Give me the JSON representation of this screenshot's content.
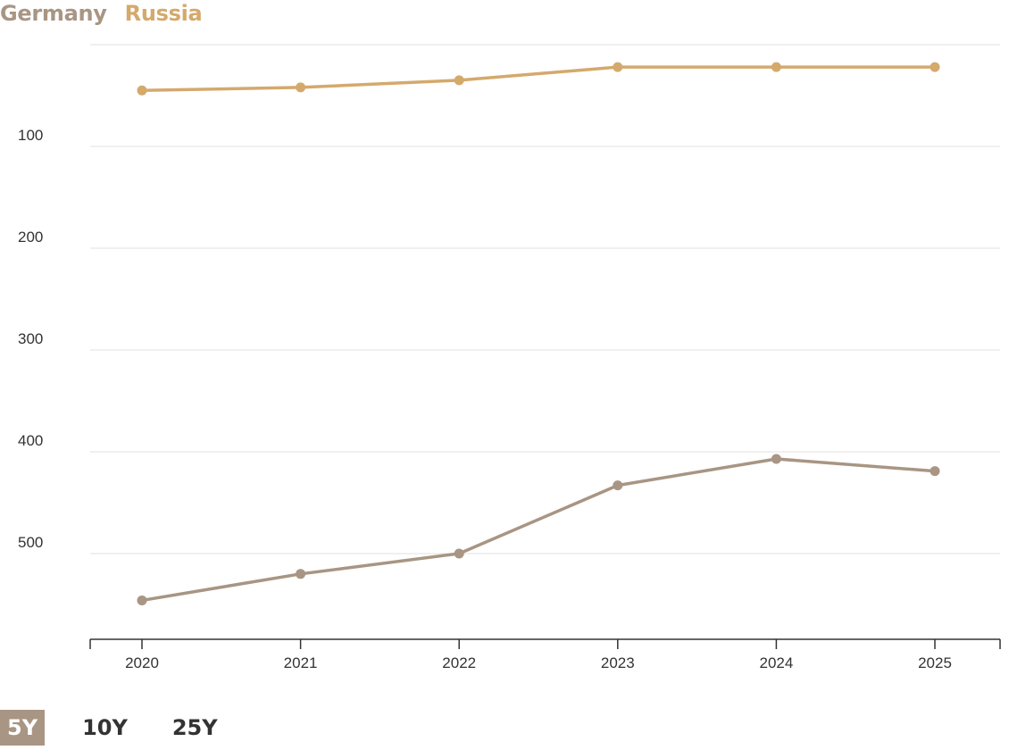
{
  "colors": {
    "germany": "#a89583",
    "russia": "#d4a96c",
    "grid": "#e6e6e6",
    "axis": "#333333",
    "tick_text": "#333333",
    "active_button_bg": "#a89583"
  },
  "legend": {
    "items": [
      {
        "label": "Germany"
      },
      {
        "label": "Russia"
      }
    ]
  },
  "range_buttons": {
    "items": [
      {
        "label": "5Y",
        "active": true
      },
      {
        "label": "10Y",
        "active": false
      },
      {
        "label": "25Y",
        "active": false
      }
    ]
  },
  "chart_data": {
    "type": "line",
    "title": "",
    "xlabel": "",
    "ylabel": "",
    "x": [
      "2020",
      "2021",
      "2022",
      "2023",
      "2024",
      "2025"
    ],
    "y_reversed": true,
    "ylim": [
      0,
      580
    ],
    "yticks": [
      100,
      200,
      300,
      400,
      500
    ],
    "grid": true,
    "legend_position": "top-left",
    "series": [
      {
        "name": "Germany",
        "values": [
          546,
          520,
          500,
          433,
          407,
          419
        ]
      },
      {
        "name": "Russia",
        "values": [
          45,
          42,
          35,
          22,
          22,
          22
        ]
      }
    ]
  }
}
